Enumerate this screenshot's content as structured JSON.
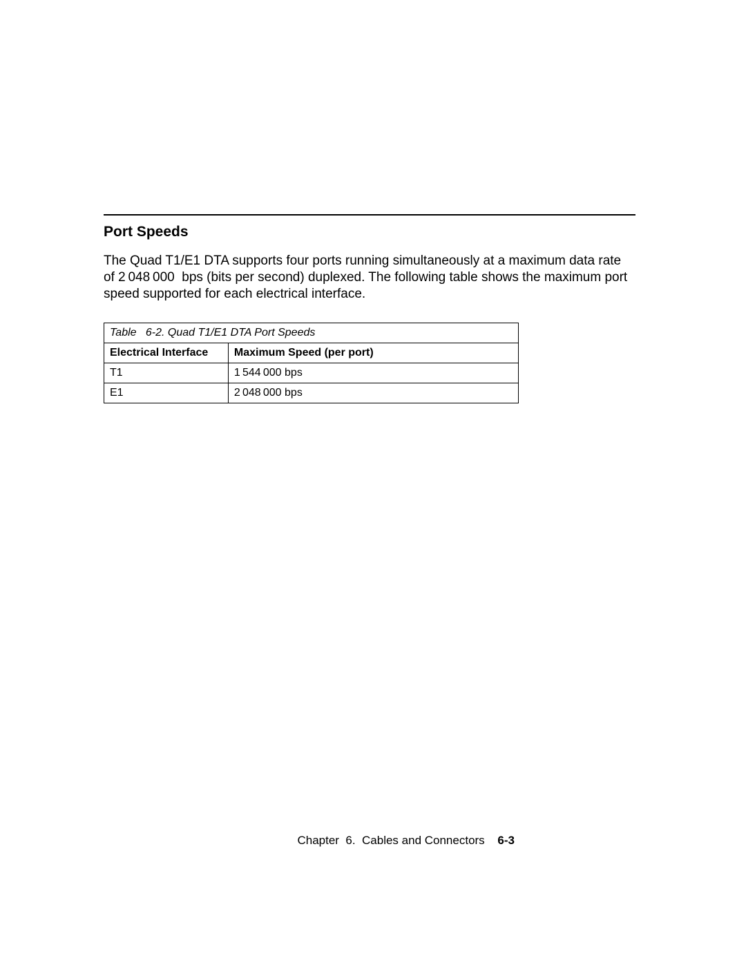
{
  "section": {
    "title": "Port Speeds",
    "paragraph": "The Quad T1/E1 DTA supports four ports running simultaneously at a maximum data rate of 2 048 000  bps (bits per second) duplexed.  The following table shows the maximum port speed supported for each electrical interface."
  },
  "table": {
    "caption_prefix": "Table",
    "caption_rest": "6-2. Quad T1/E1 DTA Port Speeds",
    "columns": [
      "Electrical Interface",
      "Maximum Speed (per port)"
    ],
    "rows": [
      [
        "T1",
        "1 544 000 bps"
      ],
      [
        "E1",
        "2 048 000 bps"
      ]
    ]
  },
  "footer": {
    "chapter": "Chapter  6.  Cables and Connectors",
    "page": "6-3"
  }
}
